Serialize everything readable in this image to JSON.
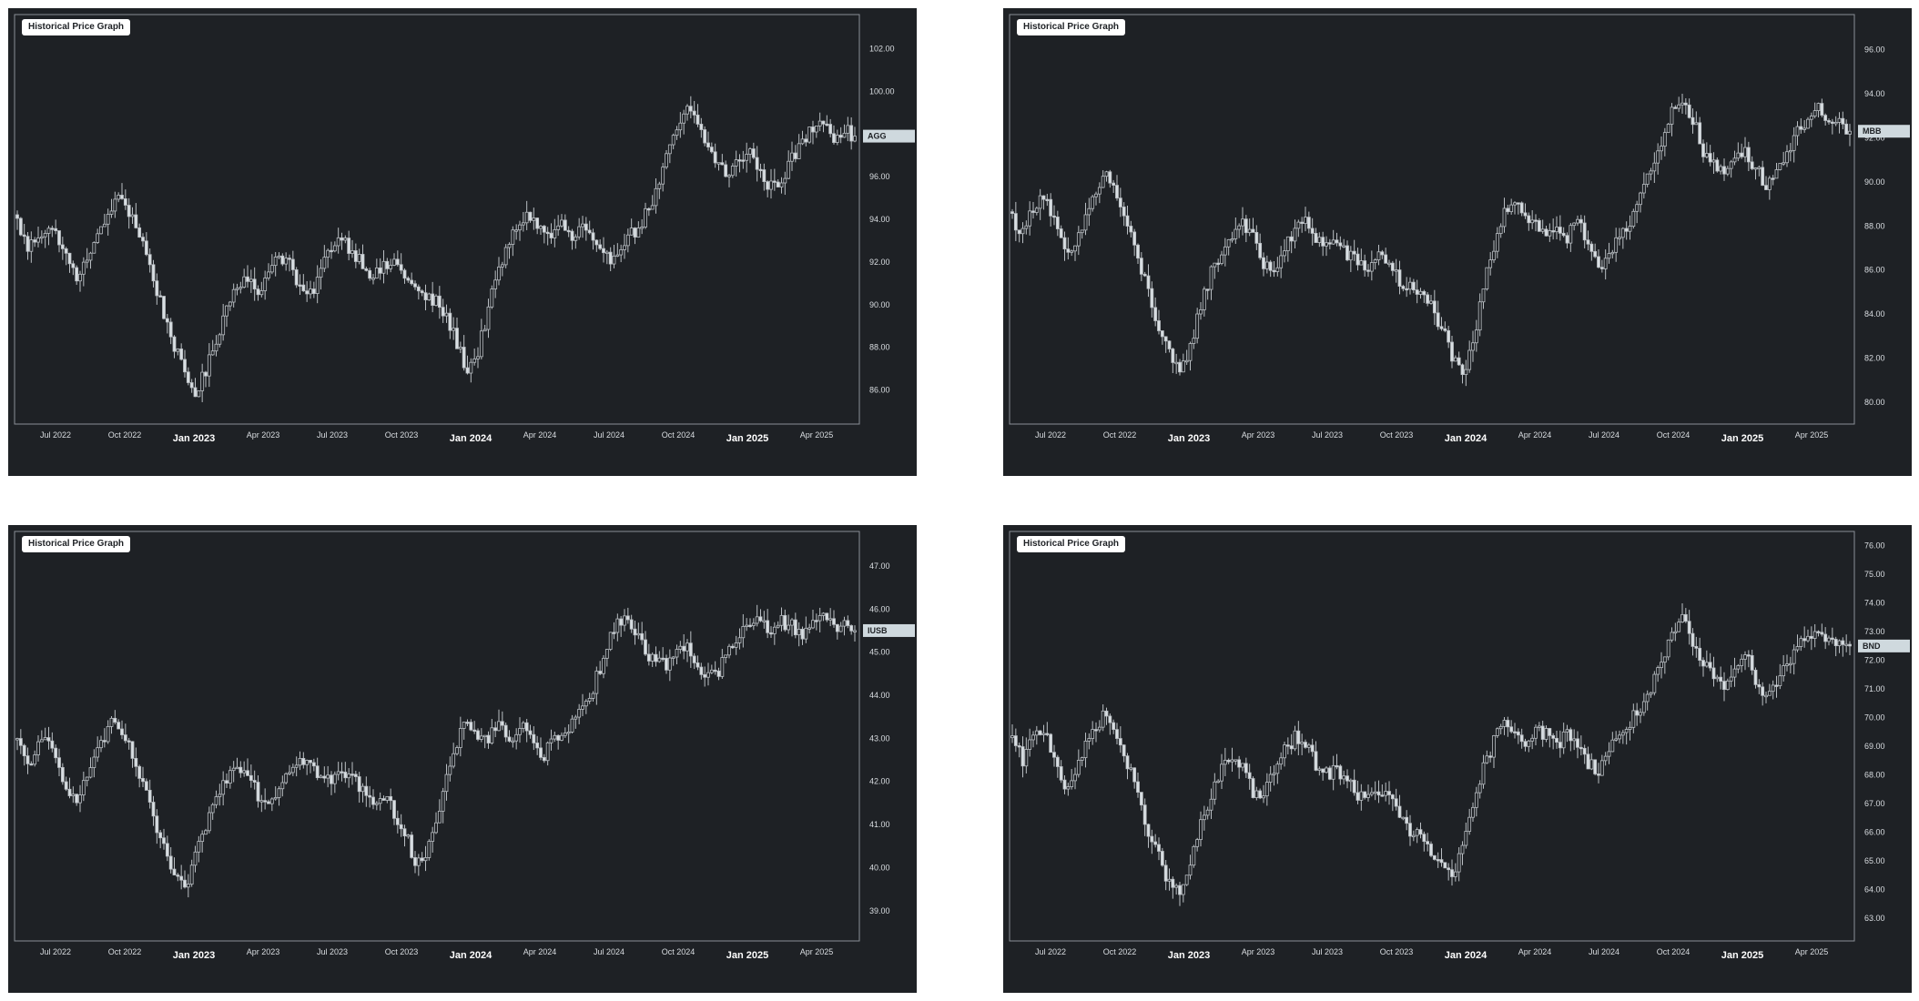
{
  "colors": {
    "panel_bg": "#1e2125",
    "frame": "#8a9096",
    "wick": "#b9bec3",
    "bullish_body": "#1e2125",
    "bearish_body": "#d9dfe3",
    "label_bg": "#cfd9de",
    "text": "#d9dde1"
  },
  "chart_data": [
    {
      "type": "candlestick",
      "title": "Historical Price Graph",
      "ticker": "AGG",
      "last_price": 97.9,
      "ylim": [
        84.4,
        103.6
      ],
      "y_ticks": [
        "86.00",
        "88.00",
        "90.00",
        "92.00",
        "94.00",
        "96.00",
        "98.00",
        "100.00",
        "102.00"
      ],
      "x_ticks": [
        {
          "label": "Jul 2022",
          "major": false
        },
        {
          "label": "Oct 2022",
          "major": false
        },
        {
          "label": "Jan 2023",
          "major": true
        },
        {
          "label": "Apr 2023",
          "major": false
        },
        {
          "label": "Jul 2023",
          "major": false
        },
        {
          "label": "Oct 2023",
          "major": false
        },
        {
          "label": "Jan 2024",
          "major": true
        },
        {
          "label": "Apr 2024",
          "major": false
        },
        {
          "label": "Jul 2024",
          "major": false
        },
        {
          "label": "Oct 2024",
          "major": false
        },
        {
          "label": "Jan 2025",
          "major": true
        },
        {
          "label": "Apr 2025",
          "major": false
        }
      ],
      "x_range": [
        "2022-05",
        "2025-05"
      ],
      "closes": [
        93.9,
        92.6,
        93.3,
        93.6,
        93.1,
        91.8,
        91.2,
        92.7,
        93.4,
        94.6,
        95.0,
        94.1,
        92.9,
        91.2,
        89.6,
        88.1,
        86.6,
        85.9,
        86.8,
        88.4,
        89.9,
        91.0,
        91.4,
        90.2,
        91.8,
        92.3,
        92.0,
        90.6,
        90.4,
        91.6,
        92.8,
        93.2,
        92.5,
        92.0,
        91.3,
        91.7,
        92.0,
        91.4,
        90.7,
        90.3,
        90.1,
        89.4,
        88.2,
        86.9,
        87.8,
        89.8,
        91.6,
        92.9,
        93.9,
        94.2,
        93.5,
        93.2,
        93.8,
        93.0,
        93.7,
        92.8,
        92.1,
        92.3,
        93.1,
        93.4,
        94.2,
        95.2,
        96.8,
        98.2,
        99.1,
        98.5,
        97.3,
        96.6,
        96.0,
        96.9,
        97.2,
        96.1,
        95.5,
        95.9,
        96.8,
        97.6,
        98.3,
        98.8,
        97.9,
        98.2,
        97.9
      ]
    },
    {
      "type": "candlestick",
      "title": "Historical Price Graph",
      "ticker": "MBB",
      "last_price": 92.3,
      "ylim": [
        79.0,
        97.6
      ],
      "y_ticks": [
        "80.00",
        "82.00",
        "84.00",
        "86.00",
        "88.00",
        "90.00",
        "92.00",
        "94.00",
        "96.00"
      ],
      "x_ticks": [
        {
          "label": "Jul 2022",
          "major": false
        },
        {
          "label": "Oct 2022",
          "major": false
        },
        {
          "label": "Jan 2023",
          "major": true
        },
        {
          "label": "Apr 2023",
          "major": false
        },
        {
          "label": "Jul 2023",
          "major": false
        },
        {
          "label": "Oct 2023",
          "major": false
        },
        {
          "label": "Jan 2024",
          "major": true
        },
        {
          "label": "Apr 2024",
          "major": false
        },
        {
          "label": "Jul 2024",
          "major": false
        },
        {
          "label": "Oct 2024",
          "major": false
        },
        {
          "label": "Jan 2025",
          "major": true
        },
        {
          "label": "Apr 2025",
          "major": false
        }
      ],
      "x_range": [
        "2022-05",
        "2025-05"
      ],
      "closes": [
        88.4,
        87.6,
        88.9,
        89.5,
        88.2,
        86.7,
        86.9,
        88.4,
        89.6,
        90.4,
        89.3,
        88.0,
        86.4,
        85.1,
        83.3,
        82.1,
        81.2,
        82.6,
        84.4,
        85.9,
        86.8,
        87.6,
        88.3,
        87.4,
        86.2,
        86.0,
        86.9,
        87.8,
        88.2,
        87.5,
        87.1,
        87.3,
        86.7,
        86.3,
        86.1,
        86.7,
        86.4,
        85.4,
        85.2,
        84.8,
        84.4,
        83.4,
        82.1,
        81.0,
        82.6,
        85.2,
        87.1,
        88.8,
        89.2,
        88.5,
        88.1,
        87.5,
        88.0,
        87.4,
        88.3,
        86.9,
        86.0,
        86.8,
        87.7,
        88.2,
        89.4,
        90.4,
        91.6,
        93.1,
        93.8,
        92.9,
        91.3,
        90.8,
        90.2,
        91.2,
        91.5,
        90.6,
        89.9,
        90.5,
        91.4,
        92.2,
        93.0,
        93.4,
        92.4,
        92.6,
        92.3
      ]
    },
    {
      "type": "candlestick",
      "title": "Historical Price Graph",
      "ticker": "IUSB",
      "last_price": 45.5,
      "ylim": [
        38.3,
        47.8
      ],
      "y_ticks": [
        "39.00",
        "40.00",
        "41.00",
        "42.00",
        "43.00",
        "44.00",
        "45.00",
        "46.00",
        "47.00"
      ],
      "x_ticks": [
        {
          "label": "Jul 2022",
          "major": false
        },
        {
          "label": "Oct 2022",
          "major": false
        },
        {
          "label": "Jan 2023",
          "major": true
        },
        {
          "label": "Apr 2023",
          "major": false
        },
        {
          "label": "Jul 2023",
          "major": false
        },
        {
          "label": "Oct 2023",
          "major": false
        },
        {
          "label": "Jan 2024",
          "major": true
        },
        {
          "label": "Apr 2024",
          "major": false
        },
        {
          "label": "Jul 2024",
          "major": false
        },
        {
          "label": "Oct 2024",
          "major": false
        },
        {
          "label": "Jan 2025",
          "major": true
        },
        {
          "label": "Apr 2025",
          "major": false
        }
      ],
      "x_range": [
        "2022-05",
        "2025-05"
      ],
      "closes": [
        42.9,
        42.4,
        42.8,
        42.9,
        42.3,
        41.8,
        41.6,
        42.4,
        42.9,
        43.3,
        43.1,
        42.6,
        41.9,
        41.1,
        40.5,
        39.7,
        39.5,
        40.2,
        41.0,
        41.6,
        42.1,
        42.4,
        42.3,
        41.7,
        41.5,
        41.9,
        42.3,
        42.6,
        42.4,
        42.1,
        42.0,
        42.2,
        42.1,
        41.8,
        41.6,
        41.6,
        41.3,
        40.8,
        40.2,
        40.3,
        41.0,
        42.0,
        42.9,
        43.4,
        43.1,
        43.0,
        43.4,
        42.9,
        43.3,
        43.0,
        42.5,
        42.9,
        43.2,
        43.3,
        43.8,
        44.2,
        44.9,
        45.5,
        45.9,
        45.5,
        45.0,
        44.8,
        44.7,
        45.1,
        45.2,
        44.6,
        44.4,
        44.6,
        45.0,
        45.4,
        45.6,
        45.8,
        45.5,
        45.7,
        45.6,
        45.4,
        45.8,
        45.9,
        45.5,
        45.7,
        45.5
      ]
    },
    {
      "type": "candlestick",
      "title": "Historical Price Graph",
      "ticker": "BND",
      "last_price": 72.5,
      "ylim": [
        62.2,
        76.5
      ],
      "y_ticks": [
        "63.00",
        "64.00",
        "65.00",
        "66.00",
        "67.00",
        "68.00",
        "69.00",
        "70.00",
        "71.00",
        "72.00",
        "73.00",
        "74.00",
        "75.00",
        "76.00"
      ],
      "x_ticks": [
        {
          "label": "Jul 2022",
          "major": false
        },
        {
          "label": "Oct 2022",
          "major": false
        },
        {
          "label": "Jan 2023",
          "major": true
        },
        {
          "label": "Apr 2023",
          "major": false
        },
        {
          "label": "Jul 2023",
          "major": false
        },
        {
          "label": "Oct 2023",
          "major": false
        },
        {
          "label": "Jan 2024",
          "major": true
        },
        {
          "label": "Apr 2024",
          "major": false
        },
        {
          "label": "Jul 2024",
          "major": false
        },
        {
          "label": "Oct 2024",
          "major": false
        },
        {
          "label": "Jan 2025",
          "major": true
        },
        {
          "label": "Apr 2025",
          "major": false
        }
      ],
      "x_range": [
        "2022-05",
        "2025-05"
      ],
      "closes": [
        69.2,
        68.5,
        69.3,
        69.6,
        68.7,
        67.6,
        67.9,
        69.0,
        69.8,
        70.1,
        69.3,
        68.4,
        67.2,
        66.1,
        65.1,
        64.2,
        63.8,
        64.9,
        66.2,
        67.2,
        68.2,
        68.6,
        68.4,
        67.4,
        67.2,
        68.2,
        68.8,
        69.3,
        69.0,
        68.4,
        68.0,
        68.2,
        67.9,
        67.3,
        67.1,
        67.5,
        67.2,
        66.6,
        66.0,
        65.8,
        65.2,
        64.9,
        64.6,
        65.3,
        66.8,
        68.2,
        69.2,
        69.8,
        69.6,
        69.2,
        69.6,
        69.4,
        69.0,
        69.5,
        69.1,
        68.4,
        68.2,
        68.9,
        69.4,
        69.8,
        70.4,
        71.0,
        71.8,
        72.8,
        73.4,
        72.6,
        71.8,
        71.5,
        71.2,
        71.8,
        72.2,
        71.4,
        70.8,
        71.2,
        71.9,
        72.5,
        72.9,
        73.1,
        72.6,
        72.8,
        72.5
      ]
    }
  ]
}
